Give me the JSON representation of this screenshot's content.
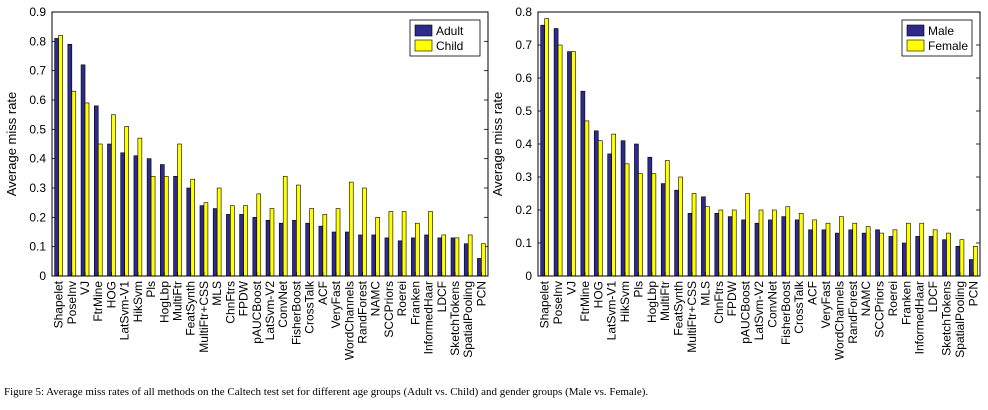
{
  "chart_data": [
    {
      "type": "bar",
      "ylabel": "Average miss rate",
      "ylim": [
        0,
        0.9
      ],
      "yticks": [
        "0",
        "0.1",
        "0.2",
        "0.3",
        "0.4",
        "0.5",
        "0.6",
        "0.7",
        "0.8",
        "0.9"
      ],
      "legend_position": "top-right",
      "categories": [
        "Shapelet",
        "PoseInv",
        "VJ",
        "FtrMine",
        "HOG",
        "LatSvm-V1",
        "HikSvm",
        "Pls",
        "HogLbp",
        "MultiFtr",
        "FeatSynth",
        "MultiFtr+CSS",
        "MLS",
        "ChnFtrs",
        "FPDW",
        "pAUCBoost",
        "LatSvm-V2",
        "ConvNet",
        "FisherBoost",
        "CrossTalk",
        "ACF",
        "VeryFast",
        "WordChannels",
        "RandForest",
        "NAMC",
        "SCCPriors",
        "Roerei",
        "Franken",
        "InformedHaar",
        "LDCF",
        "SketchTokens",
        "SpatialPooling",
        "PCN"
      ],
      "series": [
        {
          "name": "Adult",
          "color": "#2e2a8c",
          "values": [
            0.81,
            0.79,
            0.72,
            0.58,
            0.45,
            0.42,
            0.41,
            0.4,
            0.38,
            0.34,
            0.3,
            0.24,
            0.23,
            0.21,
            0.21,
            0.2,
            0.19,
            0.18,
            0.19,
            0.18,
            0.17,
            0.15,
            0.15,
            0.14,
            0.14,
            0.13,
            0.12,
            0.13,
            0.14,
            0.13,
            0.13,
            0.11,
            0.06
          ]
        },
        {
          "name": "Child",
          "color": "#ffff00",
          "values": [
            0.82,
            0.63,
            0.59,
            0.45,
            0.55,
            0.51,
            0.47,
            0.34,
            0.34,
            0.45,
            0.33,
            0.25,
            0.3,
            0.24,
            0.24,
            0.28,
            0.23,
            0.34,
            0.31,
            0.23,
            0.21,
            0.23,
            0.32,
            0.3,
            0.2,
            0.22,
            0.22,
            0.18,
            0.22,
            0.14,
            0.13,
            0.14,
            0.11
          ]
        }
      ]
    },
    {
      "type": "bar",
      "ylabel": "Average miss rate",
      "ylim": [
        0,
        0.8
      ],
      "yticks": [
        "0",
        "0.1",
        "0.2",
        "0.3",
        "0.4",
        "0.5",
        "0.6",
        "0.7",
        "0.8"
      ],
      "legend_position": "top-right",
      "categories": [
        "Shapelet",
        "PoseInv",
        "VJ",
        "FtrMine",
        "HOG",
        "LatSvm-V1",
        "HikSvm",
        "Pls",
        "HogLbp",
        "MultiFtr",
        "FeatSynth",
        "MultiFtr+CSS",
        "MLS",
        "ChnFtrs",
        "FPDW",
        "pAUCBoost",
        "LatSvm-V2",
        "ConvNet",
        "FisherBoost",
        "CrossTalk",
        "ACF",
        "VeryFast",
        "WordChannels",
        "RandForest",
        "NAMC",
        "SCCPriors",
        "Roerei",
        "Franken",
        "InformedHaar",
        "LDCF",
        "SketchTokens",
        "SpatialPooling",
        "PCN"
      ],
      "series": [
        {
          "name": "Male",
          "color": "#2e2a8c",
          "values": [
            0.76,
            0.75,
            0.68,
            0.56,
            0.44,
            0.37,
            0.41,
            0.4,
            0.36,
            0.28,
            0.26,
            0.19,
            0.24,
            0.19,
            0.18,
            0.17,
            0.16,
            0.17,
            0.18,
            0.17,
            0.14,
            0.14,
            0.13,
            0.14,
            0.13,
            0.14,
            0.12,
            0.1,
            0.12,
            0.12,
            0.11,
            0.09,
            0.05
          ]
        },
        {
          "name": "Female",
          "color": "#ffff00",
          "values": [
            0.78,
            0.7,
            0.68,
            0.47,
            0.41,
            0.43,
            0.34,
            0.31,
            0.31,
            0.35,
            0.3,
            0.25,
            0.21,
            0.2,
            0.2,
            0.25,
            0.2,
            0.2,
            0.21,
            0.19,
            0.17,
            0.16,
            0.18,
            0.16,
            0.15,
            0.13,
            0.14,
            0.16,
            0.16,
            0.14,
            0.13,
            0.11,
            0.09
          ]
        }
      ]
    }
  ],
  "caption": "Figure 5: Average miss rates of all methods on the Caltech test set for different age groups (Adult vs. Child) and gender groups (Male vs. Female)."
}
